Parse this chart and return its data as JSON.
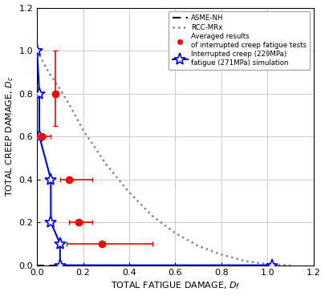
{
  "title": "",
  "xlabel": "TOTAL FATIGUE DAMAGE, $D_f$",
  "ylabel": "TOTAL CREEP DAMAGE, $D_c$",
  "xlim": [
    0.0,
    1.2
  ],
  "ylim": [
    0.0,
    1.2
  ],
  "xticks": [
    0.0,
    0.2,
    0.4,
    0.6,
    0.8,
    1.0,
    1.2
  ],
  "yticks": [
    0.0,
    0.2,
    0.4,
    0.6,
    0.8,
    1.0,
    1.2
  ],
  "asme_nh": {
    "x": [
      0.0,
      0.0,
      1.0
    ],
    "y": [
      1.0,
      0.0,
      0.0
    ],
    "color": "#000000",
    "linestyle": "--",
    "linewidth": 1.5,
    "dashes": [
      5,
      3
    ]
  },
  "rcc_mrx": {
    "x": [
      0.0,
      0.02,
      0.05,
      0.1,
      0.15,
      0.2,
      0.3,
      0.4,
      0.5,
      0.6,
      0.7,
      0.8,
      0.9,
      1.0,
      1.1
    ],
    "y": [
      1.0,
      0.96,
      0.9,
      0.82,
      0.73,
      0.63,
      0.47,
      0.34,
      0.23,
      0.15,
      0.09,
      0.05,
      0.02,
      0.005,
      0.0
    ],
    "color": "#888888",
    "linestyle": ":",
    "linewidth": 1.8
  },
  "sim_line": {
    "x": [
      0.0,
      0.01,
      0.01,
      0.06,
      0.06,
      0.1,
      0.1,
      1.02
    ],
    "y": [
      1.0,
      0.8,
      0.6,
      0.4,
      0.2,
      0.1,
      0.0,
      0.0
    ],
    "color": "blue",
    "linestyle": "-",
    "linewidth": 1.5,
    "marker": "*",
    "markersize": 11,
    "markerfacecolor": "white",
    "markeredgecolor": "blue",
    "markeredgewidth": 1.2
  },
  "exp_points": {
    "x": [
      0.02,
      0.14,
      0.28,
      0.18,
      0.08
    ],
    "y": [
      0.6,
      0.4,
      0.1,
      0.2,
      0.8
    ],
    "xerr_lo": [
      0.02,
      0.04,
      0.15,
      0.04,
      0.0
    ],
    "xerr_hi": [
      0.04,
      0.1,
      0.22,
      0.06,
      0.0
    ],
    "yerr_lo": [
      0.0,
      0.0,
      0.0,
      0.0,
      0.15
    ],
    "yerr_hi": [
      0.0,
      0.0,
      0.0,
      0.0,
      0.2
    ],
    "color": "red",
    "marker": "o",
    "markersize": 6,
    "capsize": 2,
    "elinewidth": 1.2
  },
  "legend_labels": [
    "ASME-NH",
    "RCC-MRx",
    "Averaged results\nof interrupted creep fatigue tests",
    "Interrupted creep (229MPa)\nfatigue (271MPa) simulation"
  ],
  "bg_color": "#ffffff",
  "grid_color": "#cccccc"
}
